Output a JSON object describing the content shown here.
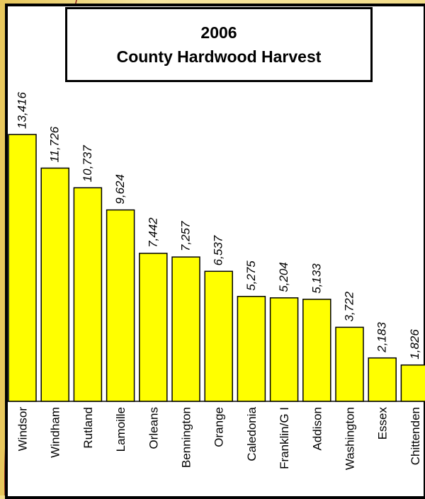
{
  "chart_data": {
    "type": "bar",
    "title": "2006",
    "subtitle": "County Hardwood Harvest",
    "categories": [
      "Windsor",
      "Windham",
      "Rutland",
      "Lamoille",
      "Orleans",
      "Bennington",
      "Orange",
      "Caledonia",
      "Franklin/G I",
      "Addison",
      "Washington",
      "Essex",
      "Chittenden"
    ],
    "values": [
      13416,
      11726,
      10737,
      9624,
      7442,
      7257,
      6537,
      5275,
      5204,
      5133,
      3722,
      2183,
      1826
    ],
    "value_labels": [
      "13,416",
      "11,726",
      "10,737",
      "9,624",
      "7,442",
      "7,257",
      "6,537",
      "5,275",
      "5,204",
      "5,133",
      "3,722",
      "2,183",
      "1,826"
    ],
    "ylim": [
      0,
      20000
    ],
    "grid": false,
    "legend": "none",
    "colors": {
      "bar_fill": "#ffff00",
      "bar_stroke": "#000000",
      "background": "#f3dd8a",
      "deco_line": "#8b1a1a"
    }
  }
}
